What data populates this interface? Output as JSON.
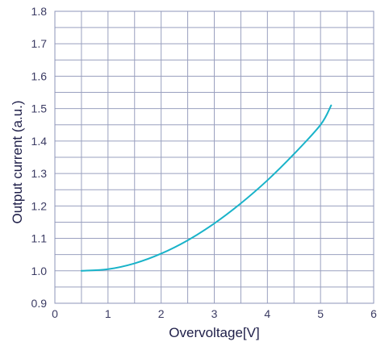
{
  "chart_data": {
    "type": "line",
    "title": "",
    "xlabel": "Overvoltage[V]",
    "ylabel": "Output current (a.u.)",
    "xlim": [
      0,
      6
    ],
    "ylim": [
      0.9,
      1.8
    ],
    "xticks": [
      {
        "value": 0,
        "label": "0"
      },
      {
        "value": 1,
        "label": "1"
      },
      {
        "value": 2,
        "label": "2"
      },
      {
        "value": 3,
        "label": "3"
      },
      {
        "value": 4,
        "label": "4"
      },
      {
        "value": 5,
        "label": "5"
      },
      {
        "value": 6,
        "label": "6"
      }
    ],
    "yticks": [
      {
        "value": 0.9,
        "label": "0.9"
      },
      {
        "value": 1.0,
        "label": "1.0"
      },
      {
        "value": 1.1,
        "label": "1.1"
      },
      {
        "value": 1.2,
        "label": "1.2"
      },
      {
        "value": 1.3,
        "label": "1.3"
      },
      {
        "value": 1.4,
        "label": "1.4"
      },
      {
        "value": 1.5,
        "label": "1.5"
      },
      {
        "value": 1.6,
        "label": "1.6"
      },
      {
        "value": 1.7,
        "label": "1.7"
      },
      {
        "value": 1.8,
        "label": "1.8"
      }
    ],
    "minor_grid": {
      "x_step": 0.5,
      "y_step": 0.05
    },
    "grid": true,
    "series": [
      {
        "color": "#19b3c9",
        "x": [
          0.5,
          1.0,
          1.5,
          2.0,
          2.5,
          3.0,
          3.5,
          4.0,
          4.5,
          5.0,
          5.2
        ],
        "values": [
          1.0,
          1.005,
          1.023,
          1.053,
          1.094,
          1.146,
          1.208,
          1.279,
          1.36,
          1.45,
          1.51
        ]
      }
    ]
  },
  "colors": {
    "grid": "#9aa0bf",
    "plot_border": "#8e94b8",
    "line": "#19b3c9",
    "text": "#3b3b63"
  }
}
